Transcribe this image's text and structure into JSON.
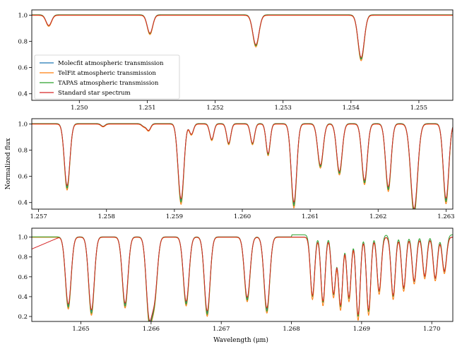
{
  "chart_data": [
    {
      "type": "line",
      "xlim": [
        1.2493,
        1.2555
      ],
      "ylim": [
        0.35,
        1.04
      ],
      "xticks": [
        1.25,
        1.251,
        1.252,
        1.253,
        1.254,
        1.255
      ],
      "xtick_labels": [
        "1.250",
        "1.251",
        "1.252",
        "1.253",
        "1.254",
        "1.255"
      ],
      "yticks": [
        0.4,
        0.6,
        0.8,
        1.0
      ],
      "ytick_labels": [
        "0.4",
        "0.6",
        "0.8",
        "1.0"
      ],
      "xlabel": "",
      "ylabel": "",
      "legend": {
        "placement": "lower-left"
      },
      "lines": [
        {
          "center": 1.24955,
          "width": 4e-05,
          "depth": 0.08
        },
        {
          "center": 1.25104,
          "width": 4e-05,
          "depth": 0.14
        },
        {
          "center": 1.2526,
          "width": 4.5e-05,
          "depth": 0.23
        },
        {
          "center": 1.25415,
          "width": 4.5e-05,
          "depth": 0.33
        }
      ]
    },
    {
      "type": "line",
      "xlim": [
        1.2569,
        1.2631
      ],
      "ylim": [
        0.35,
        1.04
      ],
      "xticks": [
        1.257,
        1.258,
        1.259,
        1.26,
        1.261,
        1.262,
        1.263
      ],
      "xtick_labels": [
        "1.257",
        "1.258",
        "1.259",
        "1.260",
        "1.261",
        "1.262",
        "1.263"
      ],
      "yticks": [
        0.4,
        0.6,
        0.8,
        1.0
      ],
      "ytick_labels": [
        "0.4",
        "0.6",
        "0.8",
        "1.0"
      ],
      "xlabel": "",
      "ylabel": "Normalized flux",
      "lines": [
        {
          "center": 1.25742,
          "width": 4e-05,
          "depth": 0.48
        },
        {
          "center": 1.25795,
          "width": 3e-05,
          "depth": 0.02
        },
        {
          "center": 1.25855,
          "width": 3e-05,
          "depth": 0.02
        },
        {
          "center": 1.25862,
          "width": 3e-05,
          "depth": 0.05
        },
        {
          "center": 1.25905,
          "width": 3e-05,
          "depth": 0.05
        },
        {
          "center": 1.2591,
          "width": 4e-05,
          "depth": 0.57
        },
        {
          "center": 1.25925,
          "width": 3e-05,
          "depth": 0.08
        },
        {
          "center": 1.25955,
          "width": 3e-05,
          "depth": 0.12
        },
        {
          "center": 1.2598,
          "width": 3e-05,
          "depth": 0.15
        },
        {
          "center": 1.26015,
          "width": 3e-05,
          "depth": 0.15
        },
        {
          "center": 1.26038,
          "width": 3e-05,
          "depth": 0.23
        },
        {
          "center": 1.26076,
          "width": 4e-05,
          "depth": 0.61
        },
        {
          "center": 1.26115,
          "width": 4e-05,
          "depth": 0.32
        },
        {
          "center": 1.26143,
          "width": 4e-05,
          "depth": 0.37
        },
        {
          "center": 1.2618,
          "width": 4e-05,
          "depth": 0.44
        },
        {
          "center": 1.26215,
          "width": 4e-05,
          "depth": 0.49
        },
        {
          "center": 1.26253,
          "width": 5e-05,
          "depth": 0.66
        },
        {
          "center": 1.263,
          "width": 4e-05,
          "depth": 0.58
        }
      ]
    },
    {
      "type": "line",
      "xlim": [
        1.2643,
        1.2703
      ],
      "ylim": [
        0.15,
        1.09
      ],
      "xticks": [
        1.265,
        1.266,
        1.267,
        1.268,
        1.269,
        1.27
      ],
      "xtick_labels": [
        "1.265",
        "1.266",
        "1.267",
        "1.268",
        "1.269",
        "1.270"
      ],
      "yticks": [
        0.2,
        0.4,
        0.6,
        0.8,
        1.0
      ],
      "ytick_labels": [
        "0.2",
        "0.4",
        "0.6",
        "0.8",
        "1.0"
      ],
      "xlabel": "Wavelength (μm)",
      "ylabel": "",
      "lines": [
        {
          "center": 1.26482,
          "width": 4e-05,
          "depth": 0.69
        },
        {
          "center": 1.26515,
          "width": 4e-05,
          "depth": 0.75
        },
        {
          "center": 1.26563,
          "width": 4e-05,
          "depth": 0.68
        },
        {
          "center": 1.26597,
          "width": 4e-05,
          "depth": 0.76
        },
        {
          "center": 1.26605,
          "width": 4e-05,
          "depth": 0.57
        },
        {
          "center": 1.2665,
          "width": 4e-05,
          "depth": 0.66
        },
        {
          "center": 1.2668,
          "width": 4e-05,
          "depth": 0.76
        },
        {
          "center": 1.26737,
          "width": 4e-05,
          "depth": 0.62
        },
        {
          "center": 1.26765,
          "width": 4e-05,
          "depth": 0.73
        },
        {
          "center": 1.2683,
          "width": 3e-05,
          "depth": 0.6
        },
        {
          "center": 1.26845,
          "width": 3e-05,
          "depth": 0.66
        },
        {
          "center": 1.2686,
          "width": 3e-05,
          "depth": 0.58
        },
        {
          "center": 1.2687,
          "width": 3e-05,
          "depth": 0.7
        },
        {
          "center": 1.26882,
          "width": 3e-05,
          "depth": 0.62
        },
        {
          "center": 1.26895,
          "width": 3e-05,
          "depth": 0.8
        },
        {
          "center": 1.2691,
          "width": 3e-05,
          "depth": 0.75
        },
        {
          "center": 1.26925,
          "width": 3e-05,
          "depth": 0.55
        },
        {
          "center": 1.26945,
          "width": 3e-05,
          "depth": 0.6
        },
        {
          "center": 1.2696,
          "width": 3e-05,
          "depth": 0.52
        },
        {
          "center": 1.26975,
          "width": 3e-05,
          "depth": 0.45
        },
        {
          "center": 1.2699,
          "width": 3e-05,
          "depth": 0.4
        },
        {
          "center": 1.27005,
          "width": 3e-05,
          "depth": 0.42
        },
        {
          "center": 1.27018,
          "width": 3e-05,
          "depth": 0.35
        }
      ]
    }
  ],
  "series": [
    {
      "name": "Molecfit atmospheric transmission",
      "color": "#1f77b4"
    },
    {
      "name": "TelFit atmospheric transmission",
      "color": "#ff7f0e"
    },
    {
      "name": "TAPAS atmospheric transmission",
      "color": "#2ca02c"
    },
    {
      "name": "Standard star spectrum",
      "color": "#d62728"
    }
  ]
}
